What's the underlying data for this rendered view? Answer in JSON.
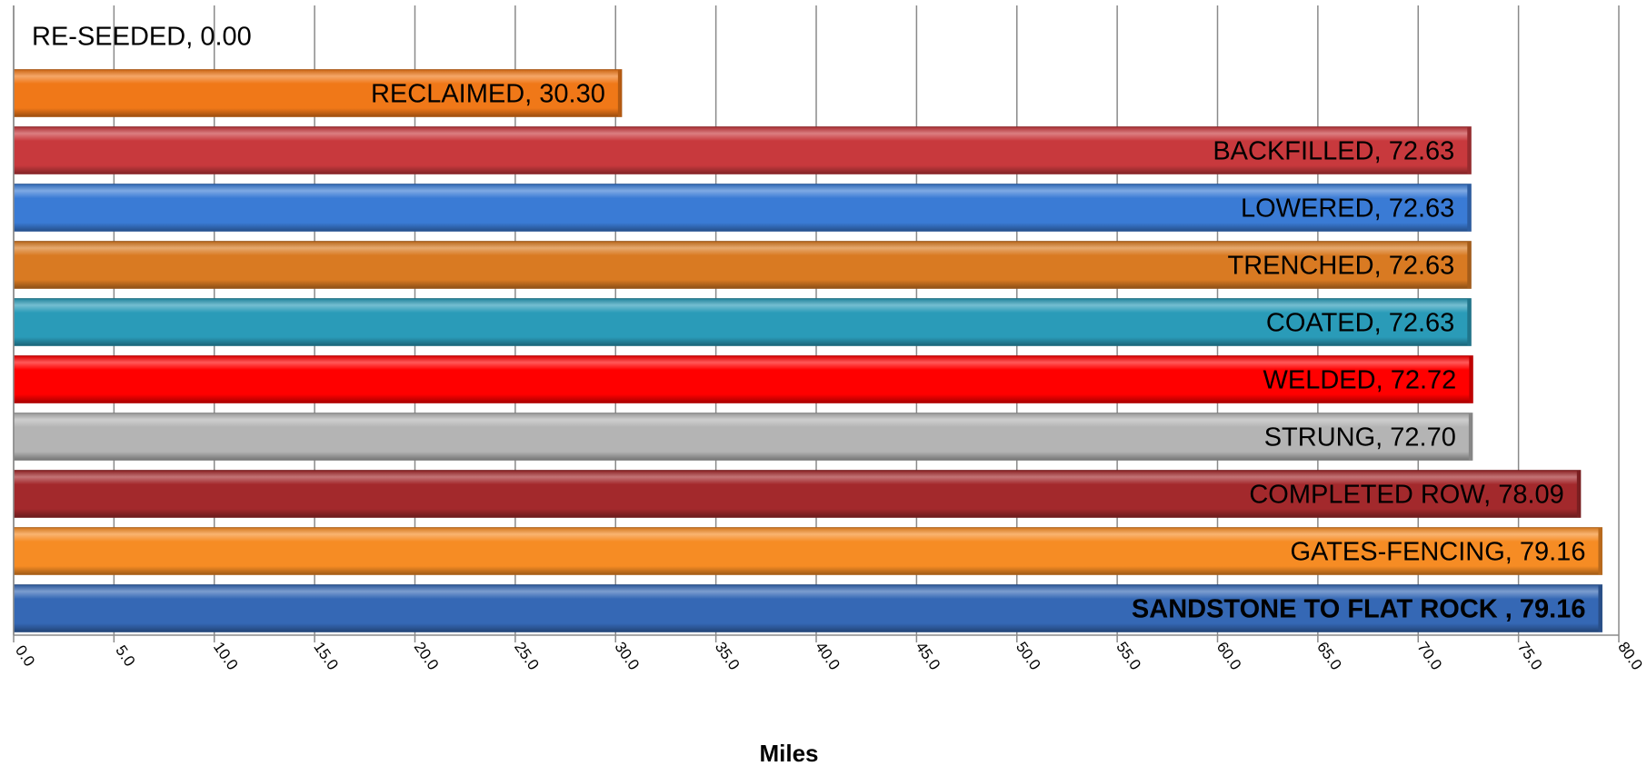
{
  "chart_data": {
    "type": "bar",
    "orientation": "horizontal",
    "title": "",
    "xlabel": "Miles",
    "ylabel": "",
    "xlim": [
      0,
      80
    ],
    "x_tick_step": 5,
    "x_tick_labels": [
      "0.0",
      "5.0",
      "10.0",
      "15.0",
      "20.0",
      "25.0",
      "30.0",
      "35.0",
      "40.0",
      "45.0",
      "50.0",
      "55.0",
      "60.0",
      "65.0",
      "70.0",
      "75.0",
      "80.0"
    ],
    "grid": "vertical",
    "legend": "none",
    "bars": [
      {
        "category": "RE-SEEDED",
        "value": 0.0,
        "label": "RE-SEEDED, 0.00",
        "color": "#F07818",
        "bold": false
      },
      {
        "category": "RECLAIMED",
        "value": 30.3,
        "label": "RECLAIMED, 30.30",
        "color": "#F07818",
        "bold": false
      },
      {
        "category": "BACKFILLED",
        "value": 72.63,
        "label": "BACKFILLED, 72.63",
        "color": "#C8393D",
        "bold": false
      },
      {
        "category": "LOWERED",
        "value": 72.63,
        "label": "LOWERED, 72.63",
        "color": "#3A7BD5",
        "bold": false
      },
      {
        "category": "TRENCHED",
        "value": 72.63,
        "label": "TRENCHED, 72.63",
        "color": "#D97A22",
        "bold": false
      },
      {
        "category": "COATED",
        "value": 72.63,
        "label": "COATED, 72.63",
        "color": "#2A9BB8",
        "bold": false
      },
      {
        "category": "WELDED",
        "value": 72.72,
        "label": "WELDED, 72.72",
        "color": "#FF0000",
        "bold": false
      },
      {
        "category": "STRUNG",
        "value": 72.7,
        "label": "STRUNG, 72.70",
        "color": "#B4B4B4",
        "bold": false
      },
      {
        "category": "COMPLETED ROW",
        "value": 78.09,
        "label": "COMPLETED ROW, 78.09",
        "color": "#A3292C",
        "bold": false
      },
      {
        "category": "GATES-FENCING",
        "value": 79.16,
        "label": "GATES-FENCING, 79.16",
        "color": "#F68C24",
        "bold": false
      },
      {
        "category": "SANDSTONE TO FLAT ROCK",
        "value": 79.16,
        "label": "SANDSTONE TO FLAT ROCK , 79.16",
        "color": "#3568B5",
        "bold": true
      }
    ]
  }
}
